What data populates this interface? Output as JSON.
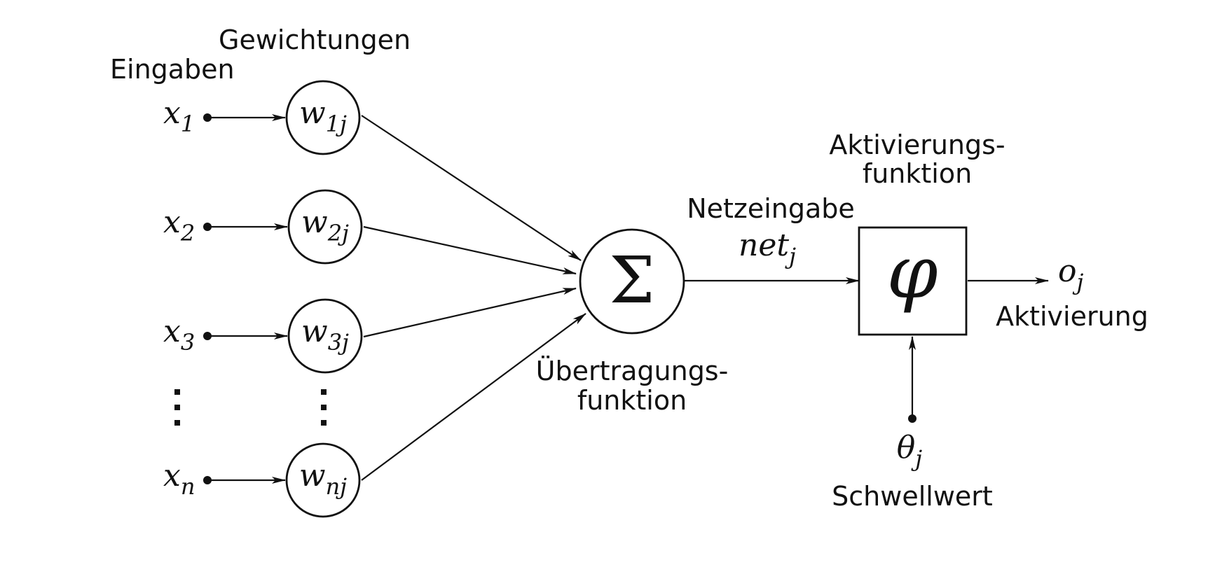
{
  "labels": {
    "eingaben": "Eingaben",
    "gewichtungen": "Gewichtungen",
    "uebertragung_line1": "Übertragungs-",
    "uebertragung_line2": "funktion",
    "netzeingabe": "Netzeingabe",
    "aktivierungsfunktion_line1": "Aktivierungs-",
    "aktivierungsfunktion_line2": "funktion",
    "aktivierung": "Aktivierung",
    "schwellwert": "Schwellwert"
  },
  "inputs": [
    {
      "base": "x",
      "sub": "1"
    },
    {
      "base": "x",
      "sub": "2"
    },
    {
      "base": "x",
      "sub": "3"
    },
    {
      "base": "x",
      "sub": "n"
    }
  ],
  "weights": [
    {
      "base": "w",
      "sub": "1j"
    },
    {
      "base": "w",
      "sub": "2j"
    },
    {
      "base": "w",
      "sub": "3j"
    },
    {
      "base": "w",
      "sub": "nj"
    }
  ],
  "symbols": {
    "sum": "Σ",
    "phi": "φ",
    "net_base": "net",
    "net_sub": "j",
    "output_base": "o",
    "output_sub": "j",
    "theta_base": "θ",
    "theta_sub": "j"
  },
  "colors": {
    "stroke": "#111111",
    "background": "#ffffff"
  }
}
